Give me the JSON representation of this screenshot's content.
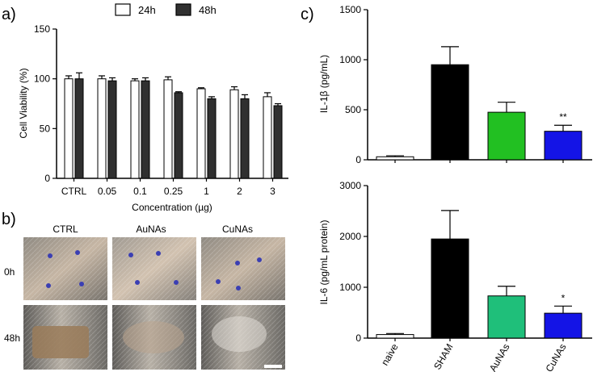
{
  "panel_labels": {
    "a": "a)",
    "b": "b)",
    "c": "c)"
  },
  "legend": {
    "items": [
      "24h",
      "48h"
    ]
  },
  "photos": {
    "columns": [
      "CTRL",
      "AuNAs",
      "CuNAs"
    ],
    "rows": [
      "0h",
      "48h"
    ]
  },
  "colors": {
    "bar24": "#ffffff",
    "bar48": "#303030",
    "naive": "#ffffff",
    "SHAM": "#000000",
    "AuNAs_il1b": "#22c022",
    "AuNAs_il6": "#1fbf7a",
    "CuNAs": "#1414e6"
  },
  "chart_data": [
    {
      "type": "bar",
      "title": "",
      "xlabel": "Concentration (µg)",
      "ylabel": "Cell Viability (%)",
      "ylim": [
        0,
        150
      ],
      "yticks": [
        0,
        50,
        100,
        150
      ],
      "categories": [
        "CTRL",
        "0.05",
        "0.1",
        "0.25",
        "1",
        "2",
        "3"
      ],
      "series": [
        {
          "name": "24h",
          "values": [
            100,
            100,
            98,
            99,
            90,
            89,
            82
          ],
          "errors": [
            3,
            3,
            2,
            3,
            1,
            3,
            4
          ]
        },
        {
          "name": "48h",
          "values": [
            100,
            98,
            98,
            86,
            80,
            80,
            73
          ],
          "errors": [
            6,
            3,
            3,
            1,
            2,
            4,
            2
          ]
        }
      ],
      "grid": false,
      "legend_position": "top"
    },
    {
      "type": "bar",
      "title": "",
      "xlabel": "",
      "ylabel": "IL-1β (pg/mL)",
      "ylim": [
        0,
        1500
      ],
      "yticks": [
        0,
        500,
        1000,
        1500
      ],
      "categories": [
        "naive",
        "SHAM",
        "AuNAs",
        "CuNAs"
      ],
      "values": [
        30,
        950,
        475,
        285
      ],
      "errors": [
        10,
        180,
        100,
        60
      ],
      "annotations": [
        "",
        "",
        "",
        "**"
      ],
      "grid": false
    },
    {
      "type": "bar",
      "title": "",
      "xlabel": "",
      "ylabel": "IL-6 (pg/mL protein)",
      "ylim": [
        0,
        3000
      ],
      "yticks": [
        0,
        1000,
        2000,
        3000
      ],
      "categories": [
        "naive",
        "SHAM",
        "AuNAs",
        "CuNAs"
      ],
      "values": [
        70,
        1950,
        830,
        490
      ],
      "errors": [
        20,
        560,
        190,
        140
      ],
      "annotations": [
        "",
        "",
        "",
        "*"
      ],
      "grid": false
    }
  ]
}
